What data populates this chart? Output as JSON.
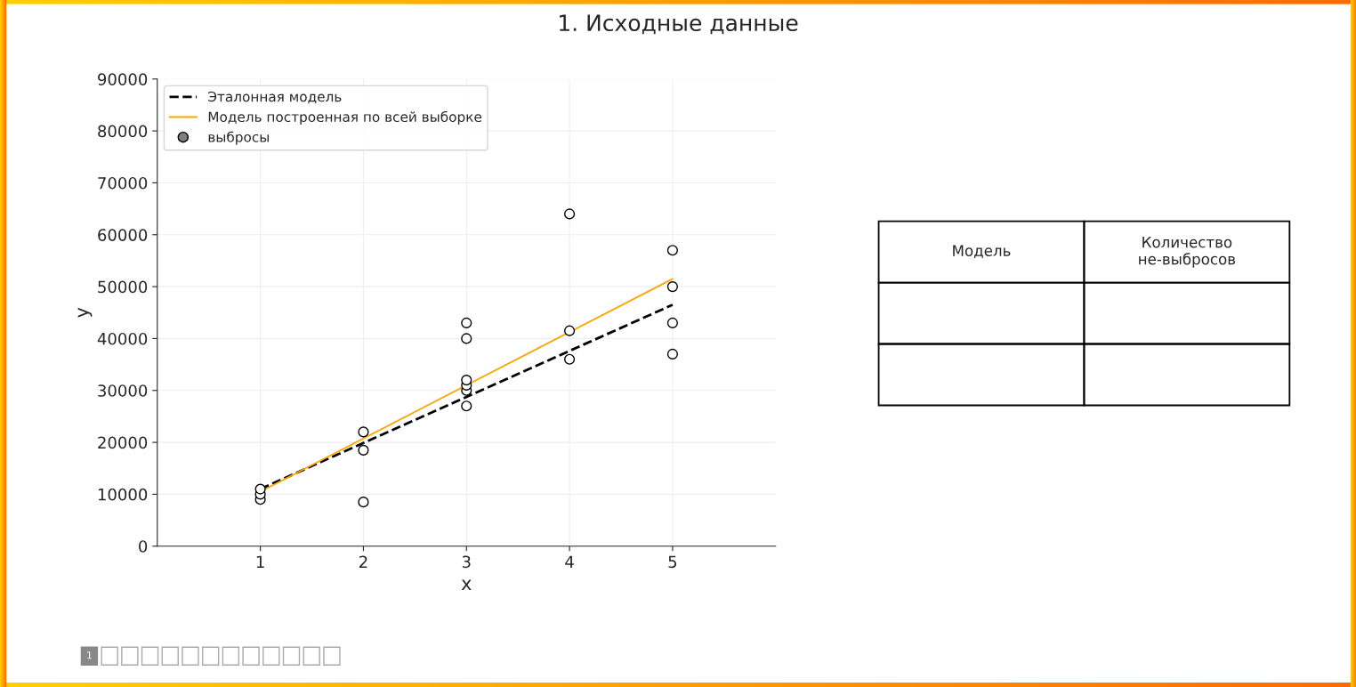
{
  "chart_data": [
    {
      "type": "scatter",
      "title": "1. Исходные данные",
      "xlabel": "x",
      "ylabel": "y",
      "xlim": [
        0,
        6
      ],
      "xticks": [
        1,
        2,
        3,
        4,
        5
      ],
      "ylim": [
        0,
        90000
      ],
      "yticks": [
        0,
        10000,
        20000,
        30000,
        40000,
        50000,
        60000,
        70000,
        80000,
        90000
      ],
      "grid": true,
      "legend": "top left",
      "series": [
        {
          "name": "Эталонная модель",
          "type": "line",
          "color": "#000000",
          "line_style": "dashed",
          "marker": "none",
          "x": [
            1,
            5
          ],
          "values": [
            11000,
            46500
          ]
        },
        {
          "name": "Модель построенная по всей выборке",
          "type": "line",
          "color": "#ffa500",
          "line_style": "solid",
          "marker": "none",
          "x": [
            1,
            5
          ],
          "values": [
            10500,
            51500
          ]
        },
        {
          "name": "выбросы",
          "type": "scatter",
          "color": "#808080",
          "marker": "circle"
        },
        {
          "type": "scatter",
          "color": "#ffffff",
          "marker": "circle",
          "x": [
            1,
            1,
            1,
            2,
            2,
            2,
            3,
            3,
            3,
            3,
            3,
            3,
            4,
            4,
            4,
            5,
            5,
            5,
            5
          ],
          "values": [
            9000,
            10000,
            11000,
            8500,
            18500,
            22000,
            27000,
            30000,
            31000,
            32000,
            40000,
            43000,
            36000,
            41500,
            64000,
            37000,
            43000,
            50000,
            57000
          ]
        }
      ]
    },
    {
      "type": "other",
      "categories": [
        "Модель",
        "Количество\nне-выбросов"
      ],
      "cells": [
        [
          null,
          null
        ],
        [
          null,
          null
        ]
      ],
      "annotations": [
        "1"
      ]
    }
  ]
}
